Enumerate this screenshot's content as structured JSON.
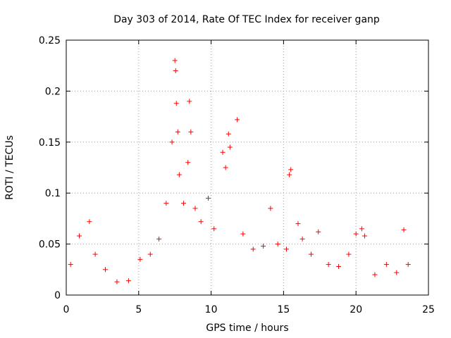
{
  "chart_data": {
    "type": "scatter",
    "title": "Day 303 of 2014, Rate Of TEC Index for receiver ganp",
    "xlabel": "GPS time / hours",
    "ylabel": "ROTI / TECUs",
    "xlim": [
      0,
      25
    ],
    "ylim": [
      0,
      0.25
    ],
    "xticks": [
      0,
      5,
      10,
      15,
      20,
      25
    ],
    "xtick_labels": [
      "0",
      "5",
      "10",
      "15",
      "20",
      "25"
    ],
    "yticks": [
      0,
      0.05,
      0.1,
      0.15,
      0.2,
      0.25
    ],
    "ytick_labels": [
      "0",
      "0.05",
      "0.1",
      "0.15",
      "0.2",
      "0.25"
    ],
    "grid": true,
    "marker": "+",
    "color": "#ff0000",
    "series": [
      {
        "name": "ROTI",
        "x": [
          0.3,
          0.9,
          1.6,
          2.0,
          2.7,
          3.5,
          4.3,
          5.1,
          5.8,
          6.4,
          6.9,
          7.3,
          7.5,
          7.55,
          7.6,
          7.7,
          7.8,
          8.1,
          8.4,
          8.5,
          8.6,
          8.9,
          9.3,
          9.8,
          10.2,
          10.8,
          11.0,
          11.2,
          11.3,
          11.8,
          12.2,
          12.9,
          13.6,
          14.1,
          14.6,
          15.2,
          15.4,
          15.5,
          16.0,
          16.3,
          16.9,
          17.4,
          18.1,
          18.8,
          19.5,
          20.0,
          20.4,
          20.6,
          21.3,
          22.1,
          22.8,
          23.3,
          23.6
        ],
        "y": [
          0.03,
          0.058,
          0.072,
          0.04,
          0.025,
          0.013,
          0.014,
          0.035,
          0.04,
          0.055,
          0.09,
          0.15,
          0.23,
          0.22,
          0.188,
          0.16,
          0.118,
          0.09,
          0.13,
          0.19,
          0.16,
          0.085,
          0.072,
          0.095,
          0.065,
          0.14,
          0.125,
          0.158,
          0.145,
          0.172,
          0.06,
          0.045,
          0.048,
          0.085,
          0.05,
          0.045,
          0.118,
          0.123,
          0.07,
          0.055,
          0.04,
          0.062,
          0.03,
          0.028,
          0.04,
          0.06,
          0.065,
          0.058,
          0.02,
          0.03,
          0.022,
          0.064,
          0.03
        ]
      }
    ]
  }
}
